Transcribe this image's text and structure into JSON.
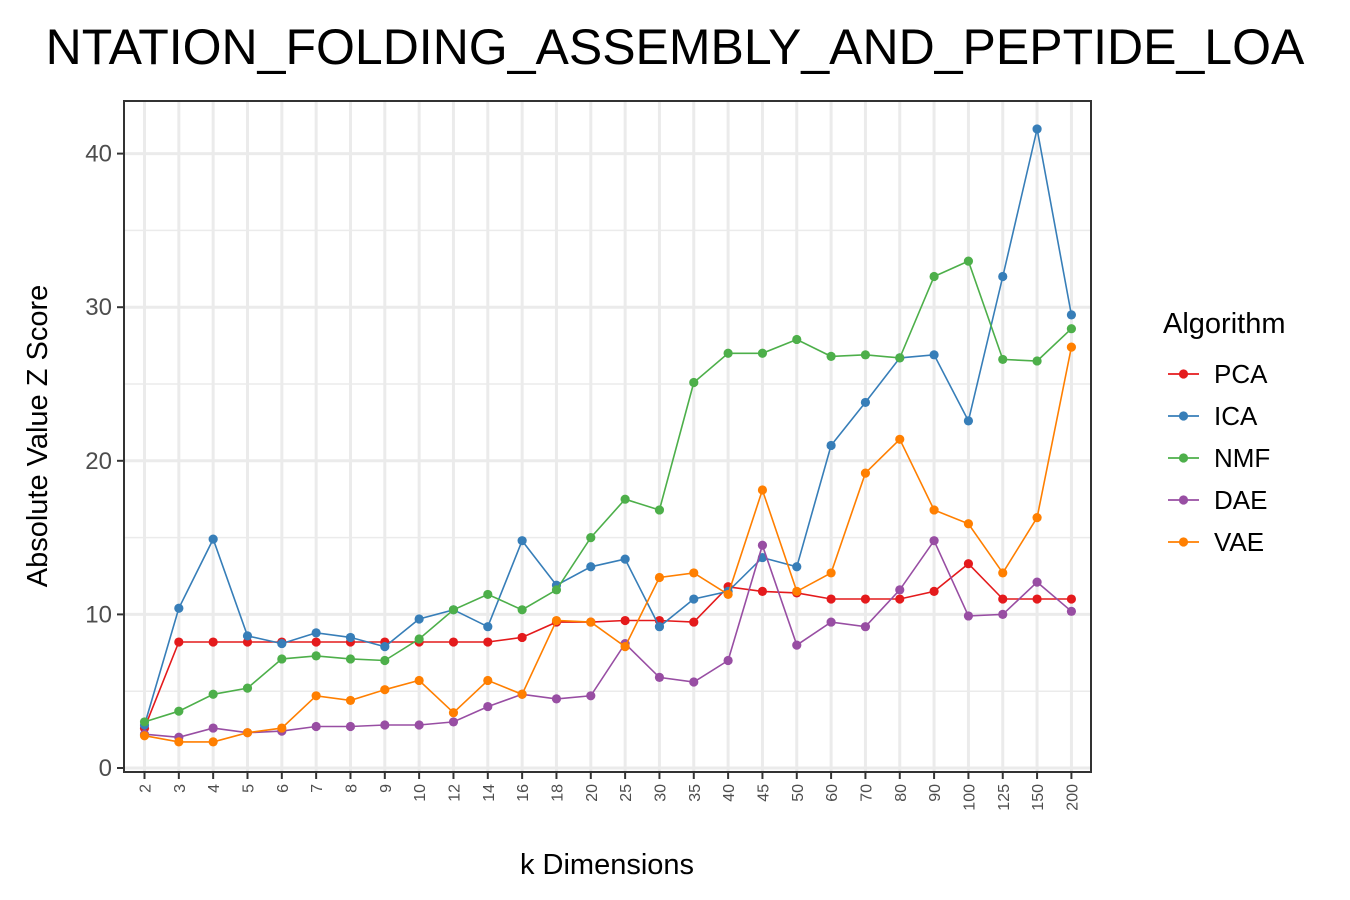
{
  "chart_data": {
    "type": "line",
    "title": "NTATION_FOLDING_ASSEMBLY_AND_PEPTIDE_LOA",
    "xlabel": "k Dimensions",
    "ylabel": "Absolute Value Z Score",
    "categories": [
      "2",
      "3",
      "4",
      "5",
      "6",
      "7",
      "8",
      "9",
      "10",
      "12",
      "14",
      "16",
      "18",
      "20",
      "25",
      "30",
      "35",
      "40",
      "45",
      "50",
      "60",
      "70",
      "80",
      "90",
      "100",
      "125",
      "150",
      "200"
    ],
    "ylim": [
      0,
      43.5
    ],
    "yticks": [
      0,
      10,
      20,
      30,
      40
    ],
    "grid": true,
    "legend": {
      "title": "Algorithm",
      "position": "right"
    },
    "series": [
      {
        "name": "PCA",
        "color": "#e41a1c",
        "values": [
          2.6,
          8.2,
          8.2,
          8.2,
          8.2,
          8.2,
          8.2,
          8.2,
          8.2,
          8.2,
          8.2,
          8.5,
          9.5,
          9.5,
          9.6,
          9.6,
          9.5,
          11.8,
          11.5,
          11.4,
          11.0,
          11.0,
          11.0,
          11.5,
          13.3,
          11.0,
          11.0,
          11.0
        ]
      },
      {
        "name": "ICA",
        "color": "#377eb8",
        "values": [
          2.8,
          10.4,
          14.9,
          8.6,
          8.1,
          8.8,
          8.5,
          7.9,
          9.7,
          10.3,
          9.2,
          14.8,
          11.9,
          13.1,
          13.6,
          9.2,
          11.0,
          11.5,
          13.7,
          13.1,
          21.0,
          23.8,
          26.7,
          26.9,
          22.6,
          32.0,
          41.6,
          29.5
        ]
      },
      {
        "name": "NMF",
        "color": "#4daf4a",
        "values": [
          3.0,
          3.7,
          4.8,
          5.2,
          7.1,
          7.3,
          7.1,
          7.0,
          8.4,
          10.3,
          11.3,
          10.3,
          11.6,
          15.0,
          17.5,
          16.8,
          25.1,
          27.0,
          27.0,
          27.9,
          26.8,
          26.9,
          26.7,
          32.0,
          33.0,
          26.6,
          26.5,
          28.6
        ]
      },
      {
        "name": "DAE",
        "color": "#984ea3",
        "values": [
          2.2,
          2.0,
          2.6,
          2.3,
          2.4,
          2.7,
          2.7,
          2.8,
          2.8,
          3.0,
          4.0,
          4.8,
          4.5,
          4.7,
          8.1,
          5.9,
          5.6,
          7.0,
          14.5,
          8.0,
          9.5,
          9.2,
          11.6,
          14.8,
          9.9,
          10.0,
          12.1,
          10.2
        ]
      },
      {
        "name": "VAE",
        "color": "#ff7f00",
        "values": [
          2.1,
          1.7,
          1.7,
          2.3,
          2.6,
          4.7,
          4.4,
          5.1,
          5.7,
          3.6,
          5.7,
          4.8,
          9.6,
          9.5,
          7.9,
          12.4,
          12.7,
          11.3,
          18.1,
          11.5,
          12.7,
          19.2,
          21.4,
          16.8,
          15.9,
          12.7,
          16.3,
          27.4
        ]
      }
    ]
  }
}
